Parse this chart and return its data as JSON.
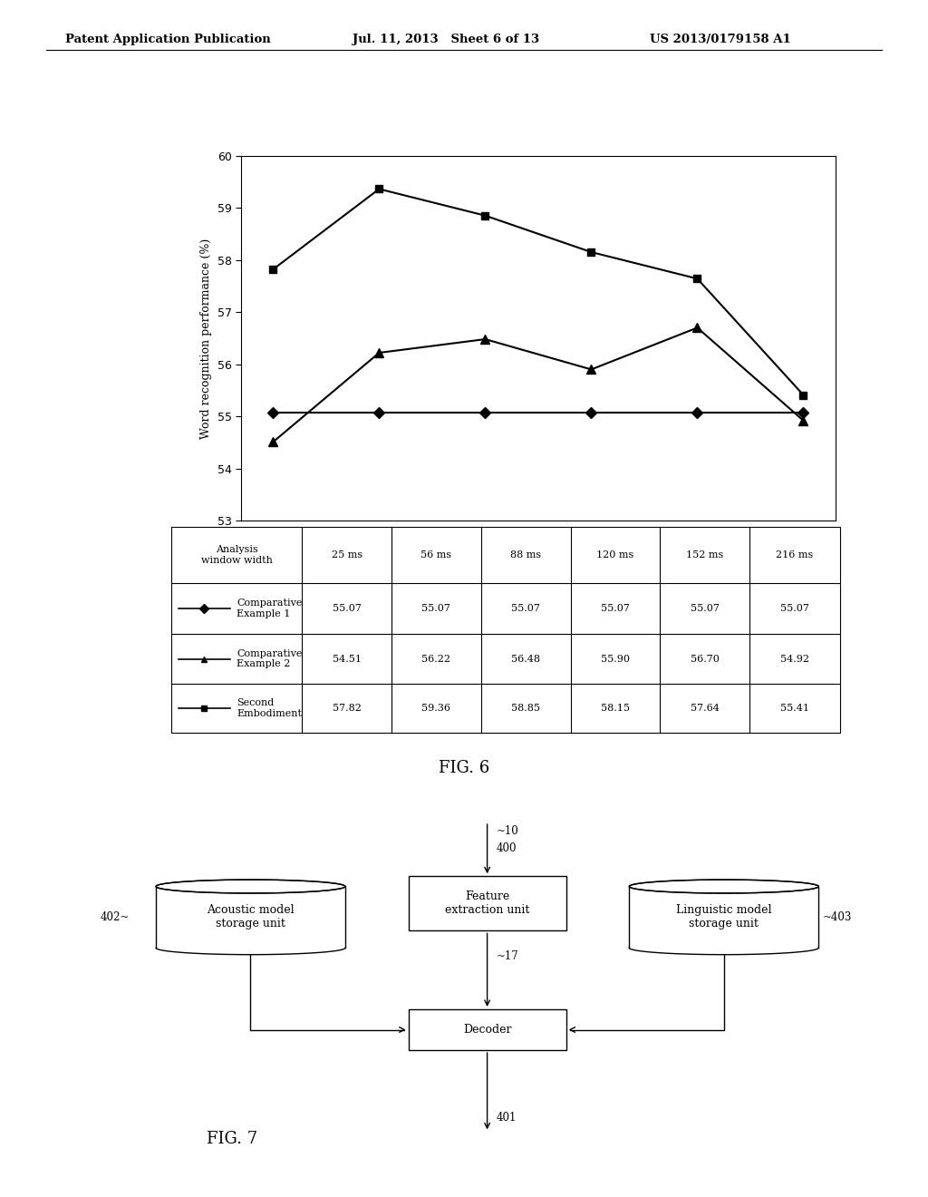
{
  "header_left": "Patent Application Publication",
  "header_mid": "Jul. 11, 2013   Sheet 6 of 13",
  "header_right": "US 2013/0179158 A1",
  "chart": {
    "x_values": [
      25,
      56,
      88,
      120,
      152,
      216
    ],
    "x_labels": [
      "25 ms",
      "56 ms",
      "88 ms",
      "120 ms",
      "152 ms",
      "216 ms"
    ],
    "y_min": 53,
    "y_max": 60,
    "y_ticks": [
      53,
      54,
      55,
      56,
      57,
      58,
      59,
      60
    ],
    "ylabel": "Word recognition performance (%)",
    "series": [
      {
        "label": "Comparative\nExample 1",
        "values": [
          55.07,
          55.07,
          55.07,
          55.07,
          55.07,
          55.07
        ],
        "marker": "D",
        "color": "#000000",
        "linewidth": 1.5,
        "markersize": 6
      },
      {
        "label": "Comparative\nExample 2",
        "values": [
          54.51,
          56.22,
          56.48,
          55.9,
          56.7,
          54.92
        ],
        "marker": "^",
        "color": "#000000",
        "linewidth": 1.5,
        "markersize": 7
      },
      {
        "label": "Second\nEmbodiment",
        "values": [
          57.82,
          59.36,
          58.85,
          58.15,
          57.64,
          55.41
        ],
        "marker": "s",
        "color": "#000000",
        "linewidth": 1.5,
        "markersize": 6
      }
    ],
    "table_header": "Analysis\nwindow width",
    "table_rows": [
      [
        "Comparative\nExample 1",
        "55.07",
        "55.07",
        "55.07",
        "55.07",
        "55.07",
        "55.07"
      ],
      [
        "Comparative\nExample 2",
        "54.51",
        "56.22",
        "56.48",
        "55.90",
        "56.70",
        "54.92"
      ],
      [
        "Second\nEmbodiment",
        "57.82",
        "59.36",
        "58.85",
        "58.15",
        "57.64",
        "55.41"
      ]
    ],
    "fig6_label": "FIG. 6"
  },
  "diagram": {
    "fig7_label": "FIG. 7"
  },
  "background_color": "#ffffff",
  "text_color": "#000000"
}
